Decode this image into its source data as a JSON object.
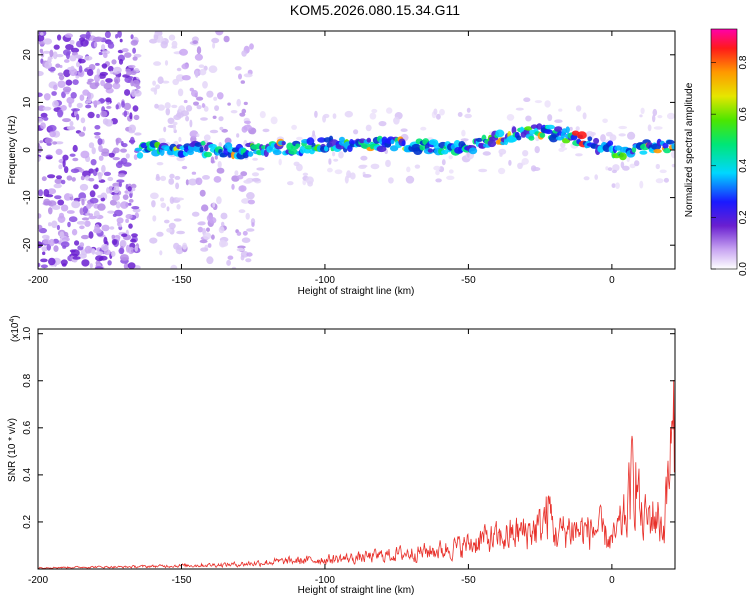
{
  "title": "KOM5.2026.080.15.34.G11",
  "colors": {
    "snr_line": "#e8302a",
    "axis": "#000000"
  },
  "chart_data": [
    {
      "type": "heatmap",
      "xlabel": "Height of straight line (km)",
      "ylabel": "Frequency (Hz)",
      "xlim": [
        -200,
        22
      ],
      "ylim": [
        -25,
        25
      ],
      "x_ticks": [
        -200,
        -150,
        -100,
        -50,
        0
      ],
      "x_tick_labels": [
        "-200",
        "-150",
        "-100",
        "-50",
        "0"
      ],
      "y_ticks": [
        -20,
        -10,
        0,
        10,
        20
      ],
      "y_tick_labels": [
        "-20",
        "-10",
        "0",
        "10",
        "20"
      ],
      "colorbar": {
        "label": "Normalized spectral amplitude",
        "range": [
          0,
          0.93
        ],
        "ticks": [
          0.0,
          0.2,
          0.4,
          0.6,
          0.8
        ],
        "tick_labels": [
          "0.0",
          "0.2",
          "0.4",
          "0.6",
          "0.8"
        ]
      },
      "ridge": [
        {
          "x": -165,
          "y": 0.0
        },
        {
          "x": -150,
          "y": 0.3
        },
        {
          "x": -130,
          "y": 0.0
        },
        {
          "x": -110,
          "y": 0.5
        },
        {
          "x": -90,
          "y": 1.5
        },
        {
          "x": -70,
          "y": 1.0
        },
        {
          "x": -55,
          "y": 0.0
        },
        {
          "x": -45,
          "y": 1.5
        },
        {
          "x": -35,
          "y": 3.0
        },
        {
          "x": -25,
          "y": 4.0
        },
        {
          "x": -15,
          "y": 3.0
        },
        {
          "x": -5,
          "y": 1.0
        },
        {
          "x": 5,
          "y": -0.5
        },
        {
          "x": 15,
          "y": 1.0
        },
        {
          "x": 22,
          "y": 0.5
        }
      ]
    },
    {
      "type": "line",
      "xlabel": "Height of straight line (km)",
      "ylabel": "SNR (10 * v/v)",
      "y_scale_label": "(x10",
      "y_scale_exponent": "4",
      "xlim": [
        -200,
        22
      ],
      "ylim": [
        0,
        1.02
      ],
      "x_ticks": [
        -200,
        -150,
        -100,
        -50,
        0
      ],
      "x_tick_labels": [
        "-200",
        "-150",
        "-100",
        "-50",
        "0"
      ],
      "y_ticks": [
        0.2,
        0.4,
        0.6,
        0.8,
        1.0
      ],
      "y_tick_labels": [
        "0.2",
        "0.4",
        "0.6",
        "0.8",
        "1.0"
      ],
      "series": [
        {
          "name": "SNR",
          "x": [
            -200,
            -190,
            -180,
            -170,
            -160,
            -150,
            -140,
            -130,
            -120,
            -110,
            -100,
            -90,
            -80,
            -70,
            -60,
            -50,
            -45,
            -40,
            -35,
            -30,
            -25,
            -22,
            -20,
            -15,
            -10,
            -5,
            0,
            5,
            8,
            10,
            15,
            18,
            20,
            22
          ],
          "y": [
            0.01,
            0.012,
            0.015,
            0.015,
            0.02,
            0.025,
            0.03,
            0.035,
            0.05,
            0.06,
            0.07,
            0.08,
            0.1,
            0.12,
            0.14,
            0.18,
            0.22,
            0.22,
            0.25,
            0.28,
            0.3,
            0.45,
            0.25,
            0.3,
            0.28,
            0.3,
            0.2,
            0.4,
            0.8,
            0.35,
            0.4,
            0.3,
            0.8,
            1.0
          ]
        }
      ]
    }
  ]
}
